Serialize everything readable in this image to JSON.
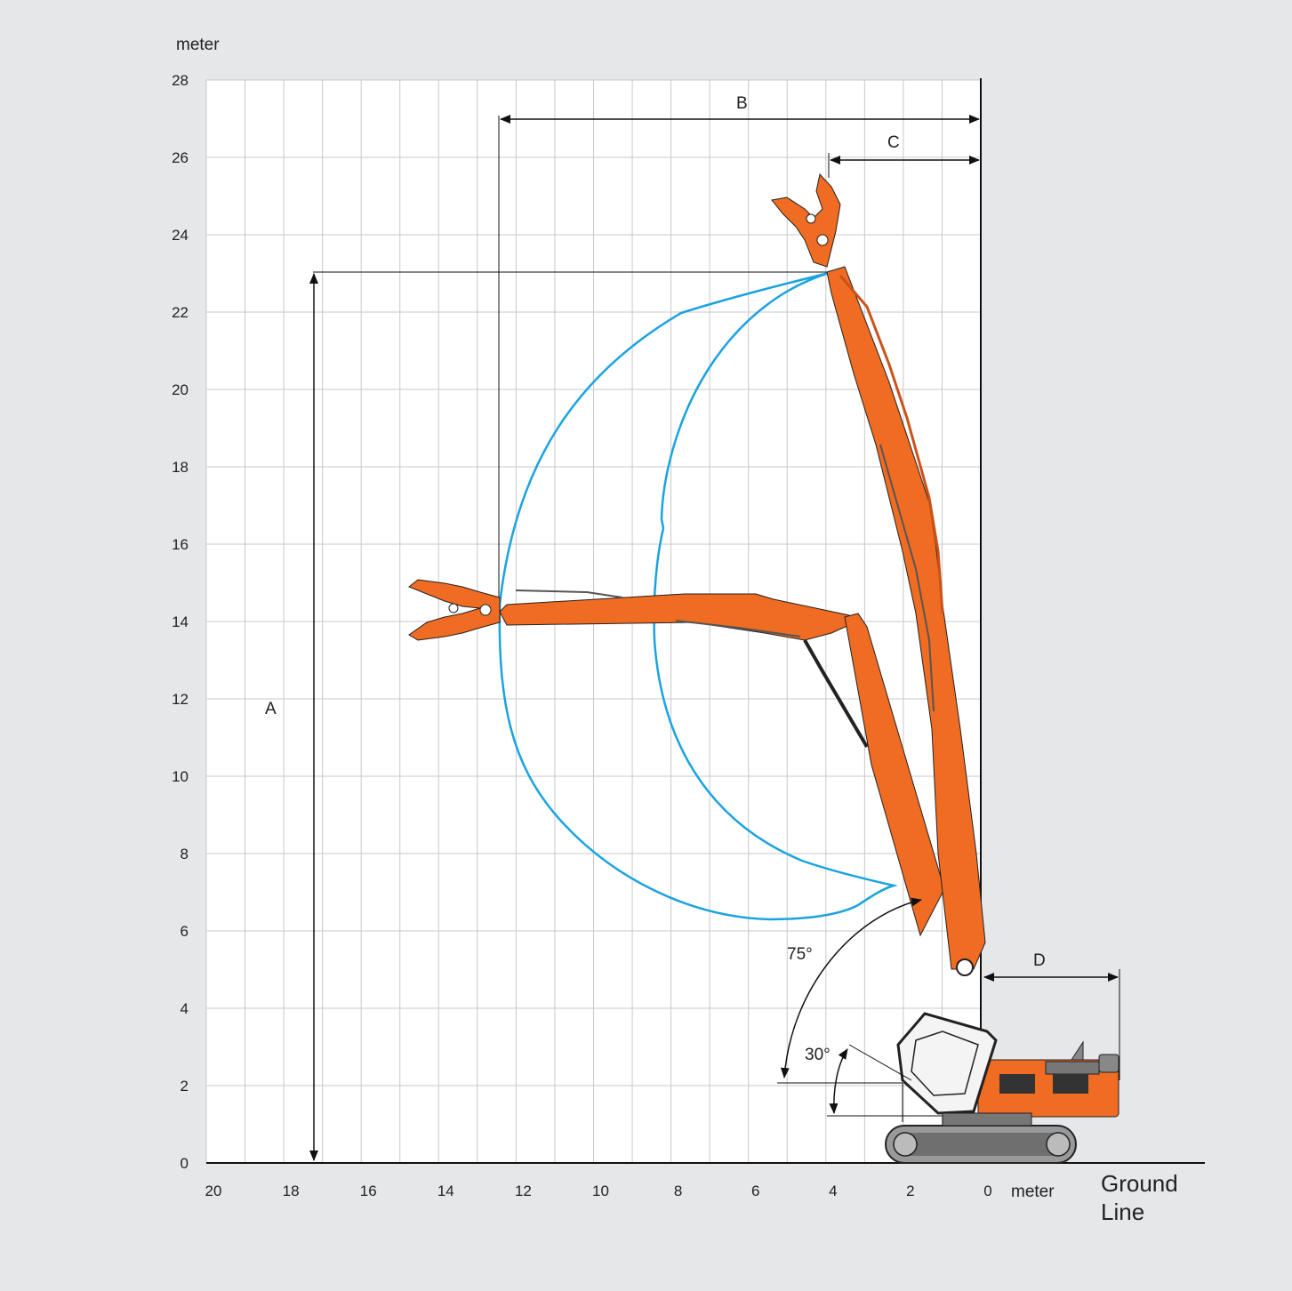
{
  "diagram": {
    "y_unit_label": "meter",
    "x_unit_label": "meter",
    "ground_line_label": [
      "Ground",
      "Line"
    ],
    "y_ticks": [
      "0",
      "2",
      "4",
      "6",
      "8",
      "10",
      "12",
      "14",
      "16",
      "18",
      "20",
      "22",
      "24",
      "26",
      "28"
    ],
    "x_ticks": [
      "20",
      "18",
      "16",
      "14",
      "12",
      "10",
      "8",
      "6",
      "4",
      "2",
      "0"
    ],
    "dimensions": {
      "A": "A",
      "B": "B",
      "C": "C",
      "D": "D"
    },
    "angles": {
      "large": "75°",
      "small": "30°"
    },
    "colors": {
      "background": "#e6e7e9",
      "plot_area": "#ffffff",
      "grid": "#c8c8c8",
      "boom": "#ef6c22",
      "boom_dark": "#c9531a",
      "envelope": "#1aa3e0",
      "line": "#111111"
    }
  }
}
